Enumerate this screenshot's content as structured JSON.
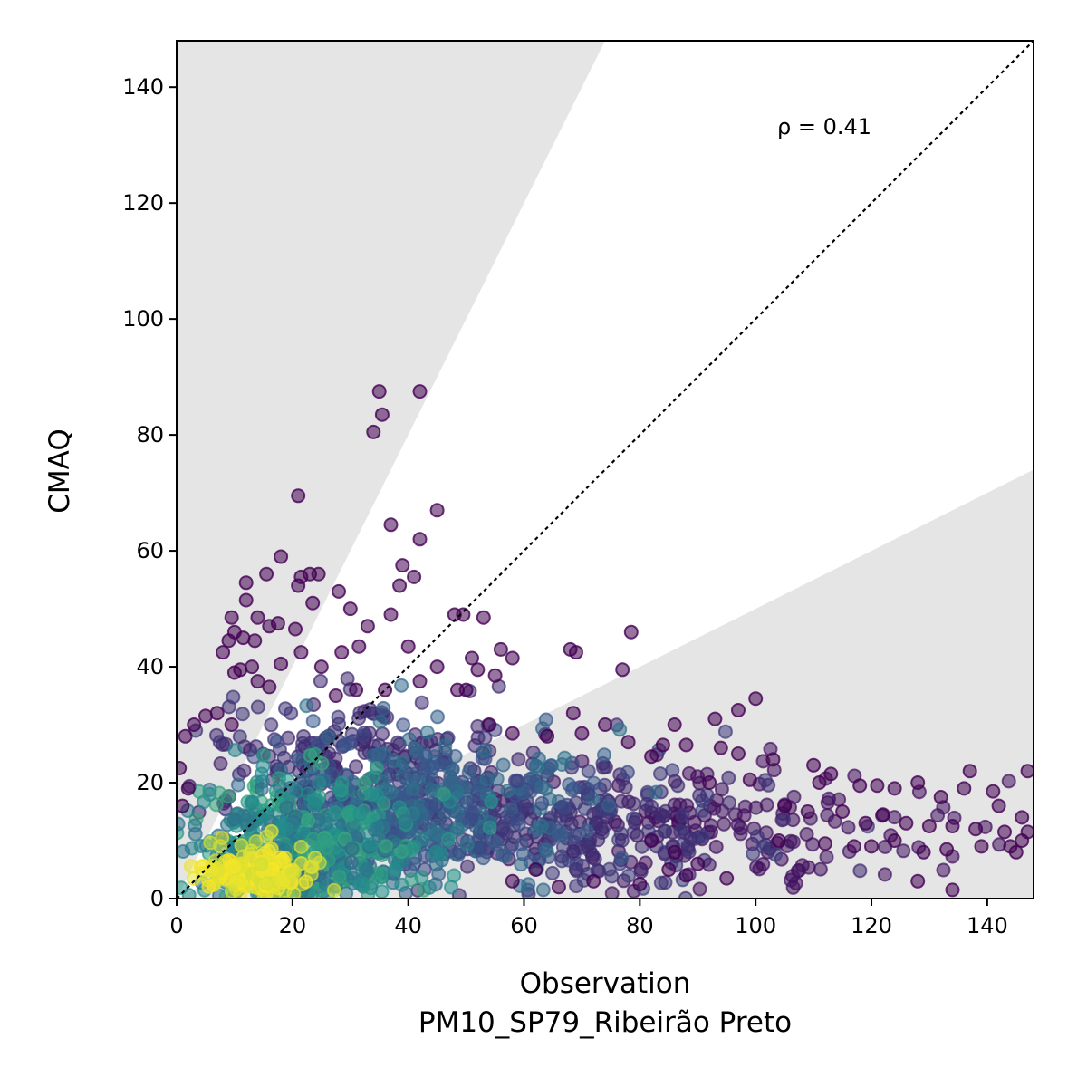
{
  "chart_data": {
    "type": "scatter",
    "title": "",
    "xlabel": "Observation",
    "xlabel_sub": "PM10_SP79_Ribeirão Preto",
    "ylabel": "CMAQ",
    "xlim": [
      0,
      148
    ],
    "ylim": [
      0,
      148
    ],
    "xticks": [
      0,
      20,
      40,
      60,
      80,
      100,
      120,
      140
    ],
    "yticks": [
      0,
      20,
      40,
      60,
      80,
      100,
      120,
      140
    ],
    "annotation": "ρ = 0.41",
    "identity_line": true,
    "shaded_band_slopes": [
      2.0,
      0.5
    ],
    "point_color_low_density": "#440154",
    "colormap": [
      "#440154",
      "#3b528b",
      "#21918c",
      "#5ec962",
      "#fde725"
    ],
    "shade_color": "#e5e5e5",
    "outlier_points": [
      [
        35,
        87.5
      ],
      [
        42,
        87.5
      ],
      [
        35.5,
        83.5
      ],
      [
        34,
        80.5
      ],
      [
        21,
        69.5
      ],
      [
        45,
        67
      ],
      [
        37,
        64.5
      ],
      [
        42,
        62
      ],
      [
        18,
        59
      ],
      [
        39,
        57.5
      ],
      [
        41,
        55.5
      ],
      [
        15.5,
        56
      ],
      [
        21.5,
        55.5
      ],
      [
        23,
        56
      ],
      [
        24.5,
        56
      ],
      [
        12,
        54.5
      ],
      [
        21,
        54
      ],
      [
        38.5,
        54
      ],
      [
        28,
        53
      ],
      [
        12,
        51.5
      ],
      [
        23.5,
        51
      ],
      [
        30,
        50
      ],
      [
        48,
        49
      ],
      [
        49.5,
        49
      ],
      [
        53,
        48.5
      ],
      [
        9.5,
        48.5
      ],
      [
        14,
        48.5
      ],
      [
        16,
        47
      ],
      [
        17.5,
        47.5
      ],
      [
        20.5,
        46.5
      ],
      [
        33,
        47
      ],
      [
        37,
        49
      ],
      [
        10,
        46
      ],
      [
        11.5,
        45
      ],
      [
        9,
        44.5
      ],
      [
        13.5,
        44.5
      ],
      [
        21.5,
        42.5
      ],
      [
        28.5,
        42.5
      ],
      [
        31.5,
        43.5
      ],
      [
        40,
        43.5
      ],
      [
        56,
        43
      ],
      [
        58,
        41.5
      ],
      [
        68,
        43
      ],
      [
        69,
        42.5
      ],
      [
        51,
        41.5
      ],
      [
        8,
        42.5
      ],
      [
        13,
        40
      ],
      [
        18,
        40.5
      ],
      [
        25,
        40
      ],
      [
        45,
        40
      ],
      [
        52,
        39.5
      ],
      [
        77,
        39.5
      ],
      [
        10,
        39
      ],
      [
        11,
        39.5
      ],
      [
        14,
        37.5
      ],
      [
        16,
        36.5
      ],
      [
        27.5,
        35
      ],
      [
        31,
        36
      ],
      [
        36,
        36
      ],
      [
        42,
        37.5
      ],
      [
        48.5,
        36
      ],
      [
        50,
        36
      ],
      [
        55,
        38.5
      ],
      [
        100,
        34.5
      ],
      [
        97,
        32.5
      ],
      [
        93,
        31
      ],
      [
        86,
        30
      ],
      [
        68.5,
        32
      ],
      [
        74,
        30
      ],
      [
        5,
        31.5
      ],
      [
        7,
        32
      ],
      [
        3,
        30
      ],
      [
        1.5,
        28
      ],
      [
        9.5,
        30
      ],
      [
        54,
        30
      ],
      [
        58,
        28.5
      ],
      [
        64,
        28
      ],
      [
        70,
        28.5
      ],
      [
        78,
        27
      ],
      [
        84,
        26.5
      ],
      [
        88,
        26.5
      ],
      [
        94,
        26
      ],
      [
        82,
        24.5
      ],
      [
        97,
        25
      ],
      [
        103,
        24
      ],
      [
        110,
        23
      ],
      [
        113,
        21.5
      ],
      [
        128,
        20
      ],
      [
        137,
        22
      ],
      [
        147,
        22
      ],
      [
        0.5,
        22.5
      ],
      [
        2,
        19
      ],
      [
        1,
        16
      ],
      [
        92,
        20
      ],
      [
        99,
        20.5
      ],
      [
        111,
        20
      ],
      [
        118,
        19.5
      ],
      [
        121,
        19.5
      ],
      [
        124,
        19
      ],
      [
        132,
        17.5
      ],
      [
        136,
        19
      ],
      [
        141,
        18.5
      ],
      [
        142,
        16
      ],
      [
        146,
        14
      ],
      [
        105,
        16
      ],
      [
        109,
        15
      ],
      [
        115,
        15
      ],
      [
        119,
        13
      ],
      [
        122,
        14.5
      ],
      [
        126,
        13
      ],
      [
        130,
        12.5
      ],
      [
        134,
        12.5
      ],
      [
        138,
        12
      ],
      [
        143,
        11.5
      ],
      [
        147,
        11.5
      ],
      [
        104,
        10
      ],
      [
        112,
        9.5
      ],
      [
        117,
        9
      ],
      [
        120,
        9
      ],
      [
        124,
        10
      ],
      [
        129,
        8
      ],
      [
        133,
        8.5
      ],
      [
        139,
        9
      ],
      [
        144,
        9
      ],
      [
        145,
        8
      ],
      [
        146,
        10
      ],
      [
        128,
        3
      ],
      [
        134,
        1.5
      ],
      [
        95,
        3.5
      ],
      [
        90,
        6
      ],
      [
        86,
        8
      ],
      [
        82,
        10
      ],
      [
        78.5,
        46
      ],
      [
        88,
        4
      ],
      [
        85,
        5
      ],
      [
        80,
        2.5
      ],
      [
        72,
        3
      ],
      [
        66,
        2
      ],
      [
        62,
        5
      ],
      [
        58,
        3
      ]
    ]
  }
}
